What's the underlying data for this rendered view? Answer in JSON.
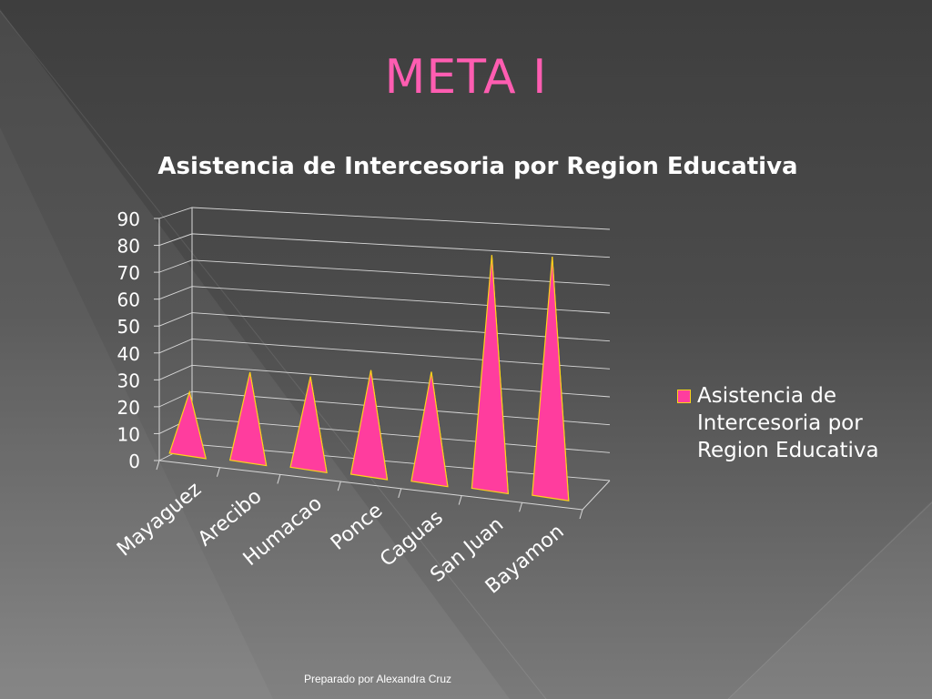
{
  "slide": {
    "title": "META I",
    "footer": "Preparado por Alexandra Cruz"
  },
  "colors": {
    "title": "#ff5db1",
    "pyramid_front": "#ff3d9e",
    "pyramid_side": "#c8277a",
    "pyramid_edge": "#ffd21a",
    "background": "#4a4a4a"
  },
  "chart_data": {
    "type": "bar",
    "style": "3d-pyramid",
    "title": "Asistencia de Intercesoria por Region Educativa",
    "categories": [
      "Mayaguez",
      "Arecibo",
      "Humacao",
      "Ponce",
      "Caguas",
      "San Juan",
      "Bayamon"
    ],
    "series": [
      {
        "name": "Asistencia de Intercesoria por Region Educativa",
        "values": [
          22,
          32,
          33,
          38,
          40,
          86,
          88
        ]
      }
    ],
    "yticks": [
      "0",
      "10",
      "20",
      "30",
      "40",
      "50",
      "60",
      "70",
      "80",
      "90"
    ],
    "ylim": [
      0,
      90
    ],
    "grid": true,
    "legend": "right"
  }
}
